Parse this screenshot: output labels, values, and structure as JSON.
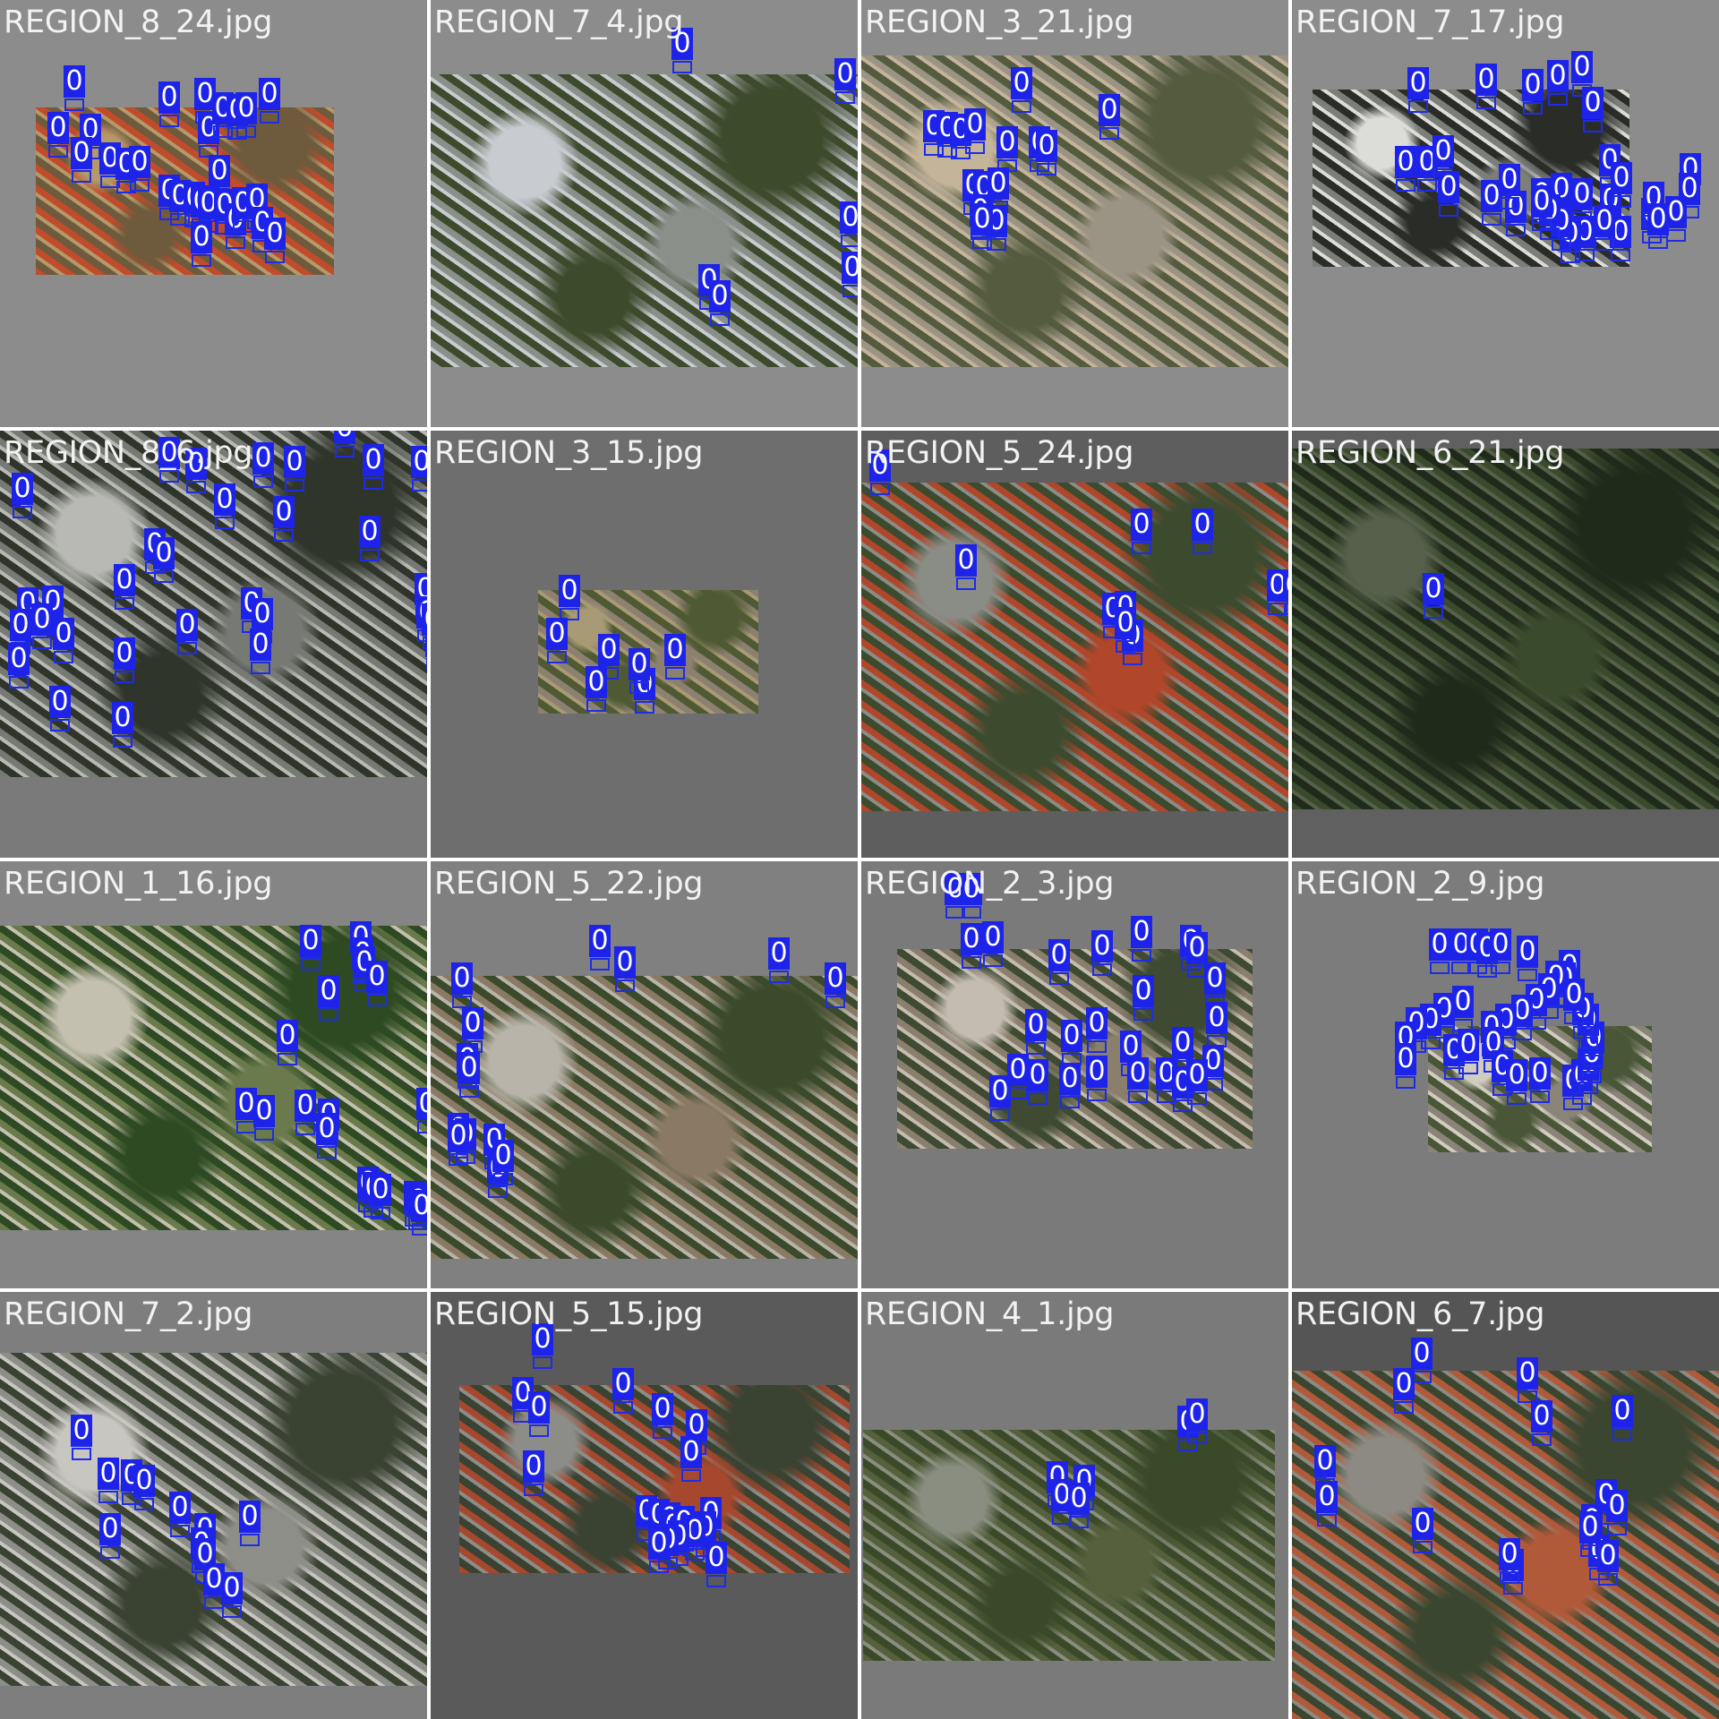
{
  "mosaic": {
    "label_color": "#1d23e8",
    "tiles": [
      {
        "title": "REGION_8_24.jpg",
        "bg": "#8c8c8c",
        "tone": [
          "#6e5a3c",
          "#c04c2c",
          "#b49a6a"
        ],
        "detections": [
          "0",
          "0",
          "0",
          "0",
          "0",
          "0",
          "0",
          "0",
          "0",
          "0",
          "0",
          "0",
          "0",
          "0",
          "0",
          "0",
          "0",
          "0",
          "0",
          "0",
          "0",
          "0",
          "0",
          "0",
          "0",
          "0",
          "0"
        ]
      },
      {
        "title": "REGION_7_4.jpg",
        "bg": "#8c8c8c",
        "tone": [
          "#3e4a2c",
          "#8a8f8a",
          "#c8ccd0"
        ],
        "detections": [
          "0",
          "0",
          "0",
          "0",
          "0",
          "0"
        ]
      },
      {
        "title": "REGION_3_21.jpg",
        "bg": "#8c8c8c",
        "tone": [
          "#545b3e",
          "#9b9484",
          "#c4b49a"
        ],
        "detections": [
          "0",
          "0",
          "0",
          "0",
          "0",
          "0",
          "0",
          "0",
          "0",
          "0",
          "0",
          "0",
          "0",
          "0",
          "0"
        ]
      },
      {
        "title": "REGION_7_17.jpg",
        "bg": "#8c8c8c",
        "tone": [
          "#2a2c28",
          "#7c7e7a",
          "#dcdcd8"
        ],
        "detections": [
          "0",
          "0",
          "0",
          "0",
          "0",
          "0",
          "0",
          "0",
          "0",
          "0",
          "0",
          "0",
          "0",
          "0",
          "0",
          "0",
          "0",
          "0",
          "0",
          "0",
          "0",
          "0",
          "0",
          "0",
          "0",
          "0",
          "0",
          "0",
          "0",
          "0",
          "0",
          "0"
        ]
      },
      {
        "title": "REGION_8_6.jpg",
        "bg": "#7a7a7a",
        "tone": [
          "#2f352a",
          "#777a74",
          "#b8b9b4"
        ],
        "detections": [
          "0",
          "0",
          "0",
          "0",
          "0",
          "0",
          "0",
          "0",
          "0",
          "0",
          "0",
          "0",
          "0",
          "0",
          "0",
          "0",
          "0",
          "0",
          "0",
          "0",
          "0",
          "0",
          "0",
          "0",
          "0",
          "0",
          "0",
          "0",
          "0",
          "0",
          "0",
          "0",
          "0"
        ]
      },
      {
        "title": "REGION_3_15.jpg",
        "bg": "#6e6e6e",
        "tone": [
          "#4f5a34",
          "#8c8070",
          "#a89a74"
        ],
        "detections": [
          "0",
          "0",
          "0",
          "0",
          "0",
          "0",
          "0"
        ]
      },
      {
        "title": "REGION_5_24.jpg",
        "bg": "#5e5e5e",
        "tone": [
          "#3c4a2e",
          "#b0462a",
          "#8a8c86"
        ],
        "detections": [
          "0",
          "0",
          "0",
          "0",
          "0",
          "0",
          "0",
          "0",
          "0",
          "0",
          "0",
          "0",
          "0",
          "0"
        ]
      },
      {
        "title": "REGION_6_21.jpg",
        "bg": "#606060",
        "tone": [
          "#1f2a1a",
          "#3a4a2c",
          "#56604a"
        ],
        "detections": [
          "0"
        ]
      },
      {
        "title": "REGION_1_16.jpg",
        "bg": "#858585",
        "tone": [
          "#2e4a22",
          "#6a7a4c",
          "#c4c0b0"
        ],
        "detections": [
          "0",
          "0",
          "0",
          "0",
          "0",
          "0",
          "0",
          "0",
          "0",
          "0",
          "0",
          "0",
          "0",
          "0",
          "0",
          "0",
          "0",
          "0",
          "0"
        ]
      },
      {
        "title": "REGION_5_22.jpg",
        "bg": "#808080",
        "tone": [
          "#3a4a2a",
          "#8a7a64",
          "#b8b4aa"
        ],
        "detections": [
          "0",
          "0",
          "0",
          "0",
          "0",
          "0",
          "0",
          "0",
          "0",
          "0",
          "0",
          "0",
          "0",
          "0",
          "0"
        ]
      },
      {
        "title": "REGION_2_3.jpg",
        "bg": "#7a7a7a",
        "tone": [
          "#3e4a32",
          "#8a7e6c",
          "#c4bcb0"
        ],
        "detections": [
          "0",
          "0",
          "0",
          "0",
          "0",
          "0",
          "0",
          "0",
          "0",
          "0",
          "0",
          "0",
          "0",
          "0",
          "0",
          "0",
          "0",
          "0",
          "0",
          "0",
          "0",
          "0",
          "0",
          "0",
          "0",
          "0",
          "0"
        ]
      },
      {
        "title": "REGION_2_9.jpg",
        "bg": "#7c7c7c",
        "tone": [
          "#4a5638",
          "#8a8478",
          "#d0ccc0"
        ],
        "detections": [
          "0",
          "0",
          "0",
          "0",
          "0",
          "0",
          "0",
          "0",
          "0",
          "0",
          "0",
          "0",
          "0",
          "0",
          "0",
          "0",
          "0",
          "0",
          "0",
          "0",
          "0",
          "0",
          "0",
          "0",
          "0",
          "0",
          "0",
          "0",
          "0",
          "0",
          "0",
          "0",
          "0",
          "0"
        ]
      },
      {
        "title": "REGION_7_2.jpg",
        "bg": "#7e7e7e",
        "tone": [
          "#3a4232",
          "#8e8e88",
          "#c8c6c0"
        ],
        "detections": [
          "0",
          "0",
          "0",
          "0",
          "0",
          "0",
          "0",
          "0",
          "0",
          "0",
          "0",
          "0"
        ]
      },
      {
        "title": "REGION_5_15.jpg",
        "bg": "#5a5a5a",
        "tone": [
          "#3a4232",
          "#a6482e",
          "#8c8c88"
        ],
        "detections": [
          "0",
          "0",
          "0",
          "0",
          "0",
          "0",
          "0",
          "0",
          "0",
          "0",
          "0",
          "0",
          "0",
          "0",
          "0",
          "0",
          "0",
          "0",
          "0",
          "0"
        ]
      },
      {
        "title": "REGION_4_1.jpg",
        "bg": "#7a7a7a",
        "tone": [
          "#3a4a28",
          "#56603c",
          "#8a8e80"
        ],
        "detections": [
          "0",
          "0",
          "0",
          "0",
          "0",
          "0"
        ]
      },
      {
        "title": "REGION_6_7.jpg",
        "bg": "#555555",
        "tone": [
          "#3a4630",
          "#b05a3a",
          "#8c8a82"
        ],
        "detections": [
          "0",
          "0",
          "0",
          "0",
          "0",
          "0",
          "0",
          "0",
          "0",
          "0",
          "0",
          "0",
          "0",
          "0",
          "0",
          "0"
        ]
      }
    ]
  }
}
